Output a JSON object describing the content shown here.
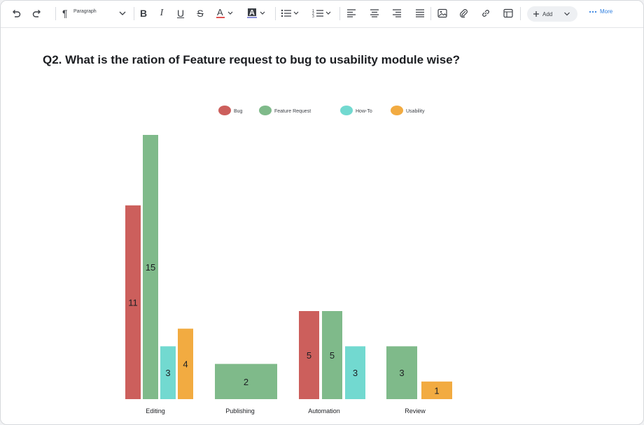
{
  "toolbar": {
    "paragraph_label": "Paragraph",
    "add_label": "Add",
    "more_label": "More",
    "icons": [
      "undo-icon",
      "redo-icon",
      "paragraph-icon",
      "bold-icon",
      "italic-icon",
      "underline-icon",
      "strikethrough-icon",
      "text-color-icon",
      "highlight-icon",
      "bullet-list-icon",
      "numbered-list-icon",
      "align-left-icon",
      "align-center-icon",
      "align-right-icon",
      "justify-icon",
      "image-icon",
      "attachment-icon",
      "link-icon",
      "table-icon",
      "plus-icon",
      "more-dots-icon"
    ]
  },
  "document": {
    "question": "Q2. What is the ration of Feature request to bug to usability module wise?"
  },
  "colors": {
    "bug": "#cc5f5c",
    "feature_request": "#7fba8a",
    "how_to": "#72d9d0",
    "usability": "#f2ab41",
    "text_color_underline": "#e05252",
    "link_blue": "#2f7fe0"
  },
  "chart_data": {
    "type": "bar",
    "title": "",
    "xlabel": "",
    "ylabel": "",
    "categories": [
      "Editing",
      "Publishing",
      "Automation",
      "Review"
    ],
    "series": [
      {
        "name": "Bug",
        "color": "#cc5f5c",
        "values": [
          11,
          null,
          5,
          null
        ]
      },
      {
        "name": "Feature Request",
        "color": "#7fba8a",
        "values": [
          15,
          2,
          5,
          3
        ]
      },
      {
        "name": "How-To",
        "color": "#72d9d0",
        "values": [
          3,
          null,
          3,
          null
        ]
      },
      {
        "name": "Usability",
        "color": "#f2ab41",
        "values": [
          4,
          null,
          null,
          1
        ]
      }
    ],
    "ylim": [
      0,
      15
    ],
    "grid": false,
    "legend": "top-center",
    "data_labels": true
  }
}
